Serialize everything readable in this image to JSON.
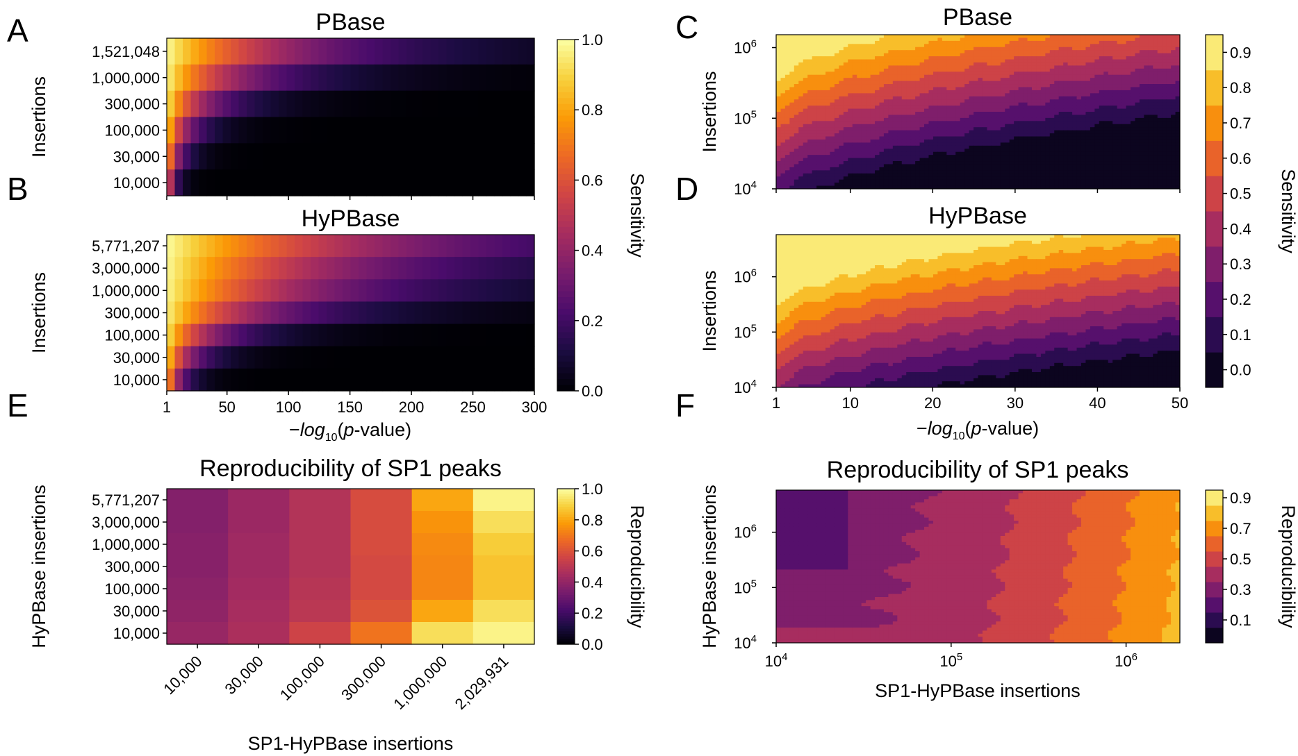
{
  "colors": {
    "colormap": "inferno",
    "stops": [
      "#000004",
      "#1b0c41",
      "#4a0c6b",
      "#781c6d",
      "#a52c60",
      "#cf4446",
      "#ed6925",
      "#fb9b06",
      "#f7d13d",
      "#fcffa4"
    ]
  },
  "chart_data": [
    {
      "panel": "A",
      "type": "heatmap",
      "title": "PBase",
      "ylabel": "Insertions",
      "xlabel": "",
      "y_categories": [
        "1,521,048",
        "1,000,000",
        "300,000",
        "100,000",
        "30,000",
        "10,000"
      ],
      "x_range": [
        1,
        300
      ],
      "colorbar": {
        "label": "Sensitivity",
        "range": [
          0,
          1.0
        ],
        "ticks": [
          "0.0",
          "0.2",
          "0.4",
          "0.6",
          "0.8",
          "1.0"
        ]
      },
      "decay_scale": [
        110,
        66,
        36,
        19,
        11,
        6
      ]
    },
    {
      "panel": "B",
      "type": "heatmap",
      "title": "HyPBase",
      "ylabel": "Insertions",
      "xlabel": "−log10(p-value)",
      "y_categories": [
        "5,771,207",
        "3,000,000",
        "1,000,000",
        "300,000",
        "100,000",
        "30,000",
        "10,000"
      ],
      "x_range": [
        1,
        300
      ],
      "x_ticks": [
        "1",
        "50",
        "100",
        "150",
        "200",
        "250",
        "300"
      ],
      "decay_scale": [
        190,
        150,
        125,
        82,
        42,
        22,
        12
      ]
    },
    {
      "panel": "C",
      "type": "heatmap",
      "title": "PBase",
      "ylabel": "Insertions",
      "xlabel": "",
      "y_scale": "log",
      "y_range": [
        10000,
        1521048
      ],
      "y_ticks": [
        "10",
        "10",
        "10"
      ],
      "y_tick_exps": [
        "4",
        "5",
        "6"
      ],
      "x_range": [
        1,
        50
      ],
      "colorbar": {
        "label": "Sensitivity",
        "levels": [
          0,
          0.1,
          0.2,
          0.3,
          0.4,
          0.5,
          0.6,
          0.7,
          0.8,
          0.9
        ],
        "ticks": [
          "0.0",
          "0.1",
          "0.2",
          "0.3",
          "0.4",
          "0.5",
          "0.6",
          "0.7",
          "0.8",
          "0.9"
        ]
      }
    },
    {
      "panel": "D",
      "type": "heatmap",
      "title": "HyPBase",
      "ylabel": "Insertions",
      "xlabel": "−log10(p-value)",
      "y_scale": "log",
      "y_range": [
        10000,
        5771207
      ],
      "y_ticks": [
        "10",
        "10",
        "10"
      ],
      "y_tick_exps": [
        "4",
        "5",
        "6"
      ],
      "x_range": [
        1,
        50
      ],
      "x_ticks": [
        "1",
        "10",
        "20",
        "30",
        "40",
        "50"
      ]
    },
    {
      "panel": "E",
      "type": "heatmap",
      "title": "Reproducibility of SP1 peaks",
      "ylabel": "HyPBase insertions",
      "xlabel": "SP1-HyPBase insertions",
      "y_categories": [
        "5,771,207",
        "3,000,000",
        "1,000,000",
        "300,000",
        "100,000",
        "30,000",
        "10,000"
      ],
      "x_categories": [
        "10,000",
        "30,000",
        "100,000",
        "300,000",
        "1,000,000",
        "2,029,931"
      ],
      "values": [
        [
          0.36,
          0.42,
          0.48,
          0.58,
          0.8,
          0.97
        ],
        [
          0.36,
          0.42,
          0.48,
          0.58,
          0.76,
          0.92
        ],
        [
          0.37,
          0.43,
          0.48,
          0.58,
          0.74,
          0.88
        ],
        [
          0.37,
          0.43,
          0.48,
          0.57,
          0.73,
          0.86
        ],
        [
          0.38,
          0.44,
          0.49,
          0.57,
          0.73,
          0.86
        ],
        [
          0.39,
          0.45,
          0.5,
          0.6,
          0.8,
          0.92
        ],
        [
          0.41,
          0.46,
          0.55,
          0.69,
          0.92,
          0.97
        ]
      ],
      "colorbar": {
        "label": "Reproducibility",
        "range": [
          0,
          1.0
        ],
        "ticks": [
          "0.0",
          "0.2",
          "0.4",
          "0.6",
          "0.8",
          "1.0"
        ]
      }
    },
    {
      "panel": "F",
      "type": "heatmap",
      "title": "Reproducibility of SP1 peaks",
      "ylabel": "HyPBase insertions",
      "xlabel": "SP1-HyPBase insertions",
      "y_scale": "log",
      "y_range": [
        10000,
        5771207
      ],
      "x_scale": "log",
      "x_range": [
        10000,
        2029931
      ],
      "x_ticks": [
        "10",
        "10",
        "10"
      ],
      "x_tick_exps": [
        "4",
        "5",
        "6"
      ],
      "y_ticks": [
        "10",
        "10",
        "10"
      ],
      "y_tick_exps": [
        "4",
        "5",
        "6"
      ],
      "colorbar": {
        "label": "Reproducibility",
        "levels": [
          0,
          0.1,
          0.2,
          0.3,
          0.4,
          0.5,
          0.6,
          0.7,
          0.8,
          0.9
        ],
        "ticks": [
          "0.1",
          "0.3",
          "0.5",
          "0.7",
          "0.9"
        ]
      }
    }
  ]
}
